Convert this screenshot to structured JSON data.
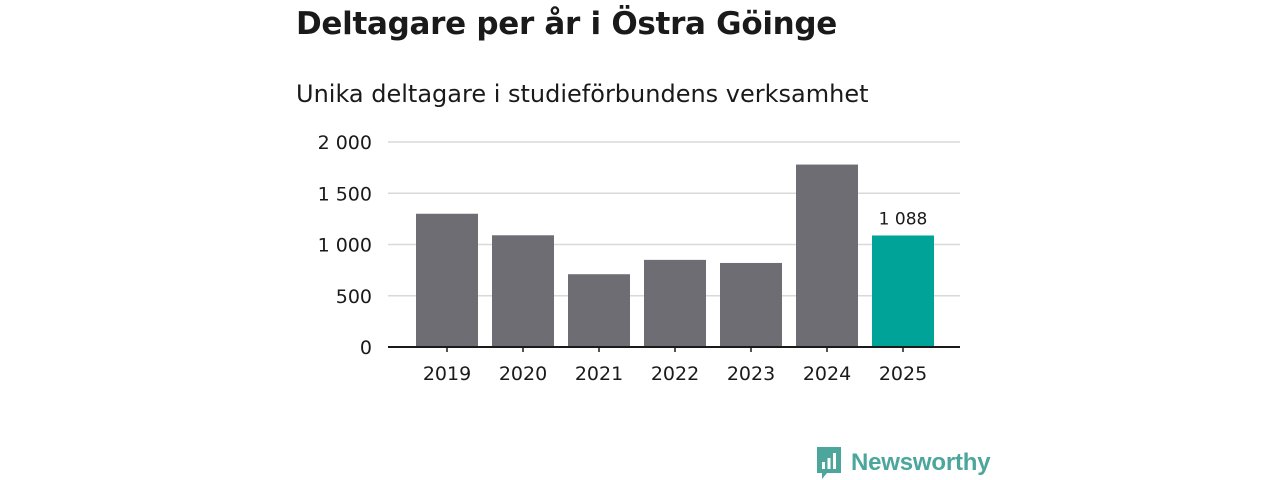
{
  "title": "Deltagare per år i Östra Göinge",
  "subtitle": "Unika deltagare i studieförbundens verksamhet",
  "brand": {
    "name": "Newsworthy",
    "color": "#4da69b"
  },
  "colors": {
    "bar": "#6e6d73",
    "highlight": "#00a398",
    "grid": "#d9d9d9",
    "axis": "#1a1a1a",
    "text": "#1a1a1a"
  },
  "chart_data": {
    "type": "bar",
    "categories": [
      "2019",
      "2020",
      "2021",
      "2022",
      "2023",
      "2024",
      "2025"
    ],
    "values": [
      1300,
      1090,
      710,
      850,
      820,
      1780,
      1088
    ],
    "highlight_index": 6,
    "data_labels": [
      {
        "index": 6,
        "text": "1 088"
      }
    ],
    "ylim": [
      0,
      2000
    ],
    "yticks": [
      0,
      500,
      1000,
      1500,
      2000
    ],
    "ytick_labels": [
      "0",
      "500",
      "1 000",
      "1 500",
      "2 000"
    ],
    "xlabel": "",
    "ylabel": "",
    "grid": true,
    "legend": "none"
  }
}
